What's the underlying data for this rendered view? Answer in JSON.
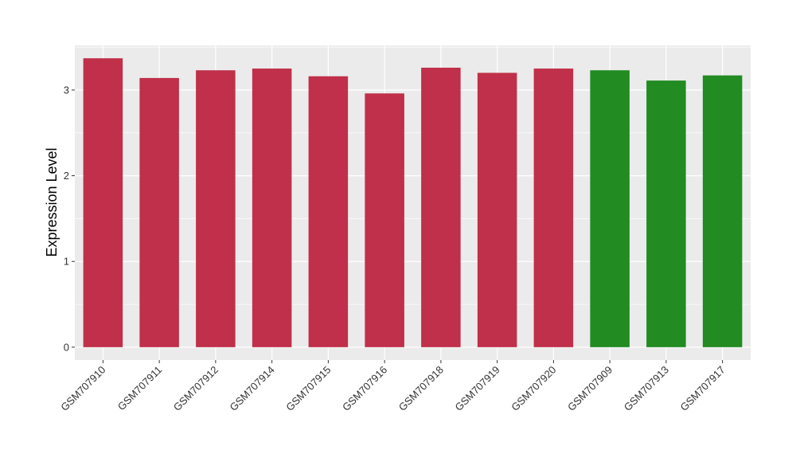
{
  "chart_data": {
    "type": "bar",
    "title": "",
    "xlabel": "",
    "ylabel": "Expression Level",
    "ylim": [
      -0.15,
      3.52
    ],
    "yticks": [
      0,
      1,
      2,
      3
    ],
    "grid": true,
    "categories": [
      "GSM707910",
      "GSM707911",
      "GSM707912",
      "GSM707914",
      "GSM707915",
      "GSM707916",
      "GSM707918",
      "GSM707919",
      "GSM707920",
      "GSM707909",
      "GSM707913",
      "GSM707917"
    ],
    "values": [
      3.37,
      3.14,
      3.23,
      3.25,
      3.16,
      2.96,
      3.26,
      3.2,
      3.25,
      3.23,
      3.11,
      3.17
    ],
    "bar_colors": [
      "#c0304a",
      "#c0304a",
      "#c0304a",
      "#c0304a",
      "#c0304a",
      "#c0304a",
      "#c0304a",
      "#c0304a",
      "#c0304a",
      "#228b22",
      "#228b22",
      "#228b22"
    ],
    "panel_background": "#ebebeb",
    "gridline_color": "#ffffff"
  }
}
